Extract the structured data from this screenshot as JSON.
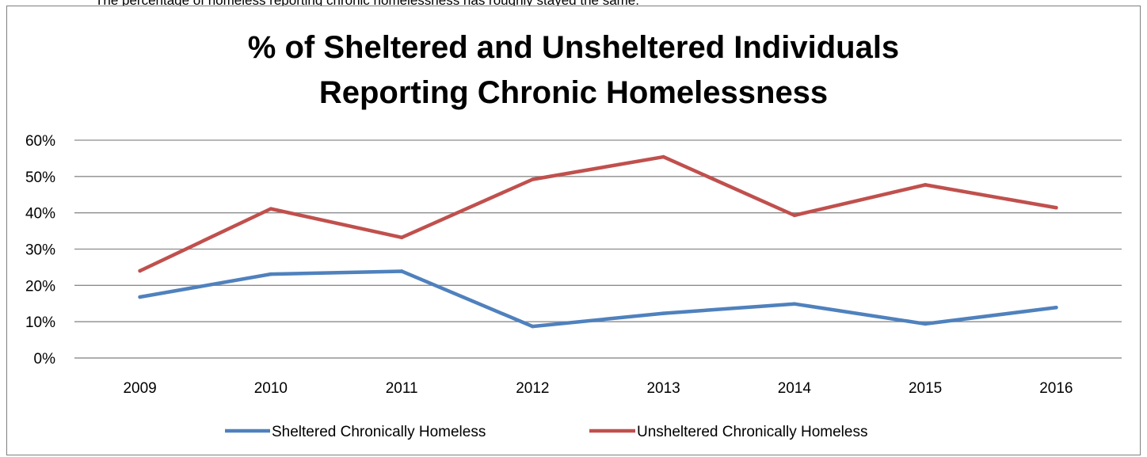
{
  "top_snippet": "The percentage of homeless reporting chronic homelessness has roughly stayed the same.",
  "chart_data": {
    "type": "line",
    "title_lines": [
      "% of Sheltered and Unsheltered Individuals",
      "Reporting Chronic Homelessness"
    ],
    "categories": [
      "2009",
      "2010",
      "2011",
      "2012",
      "2013",
      "2014",
      "2015",
      "2016"
    ],
    "y_ticks": [
      "0%",
      "10%",
      "20%",
      "30%",
      "40%",
      "50%",
      "60%"
    ],
    "ylim": [
      0,
      60
    ],
    "grid": true,
    "legend_position": "bottom",
    "series": [
      {
        "name": "Sheltered Chronically Homeless",
        "color": "#4f81bd",
        "values": [
          16.8,
          23.1,
          23.9,
          8.7,
          12.3,
          14.9,
          9.4,
          13.9
        ]
      },
      {
        "name": "Unsheltered Chronically Homeless",
        "color": "#c0504d",
        "values": [
          24.0,
          41.1,
          33.2,
          49.2,
          55.4,
          39.3,
          47.7,
          41.4
        ]
      }
    ]
  }
}
